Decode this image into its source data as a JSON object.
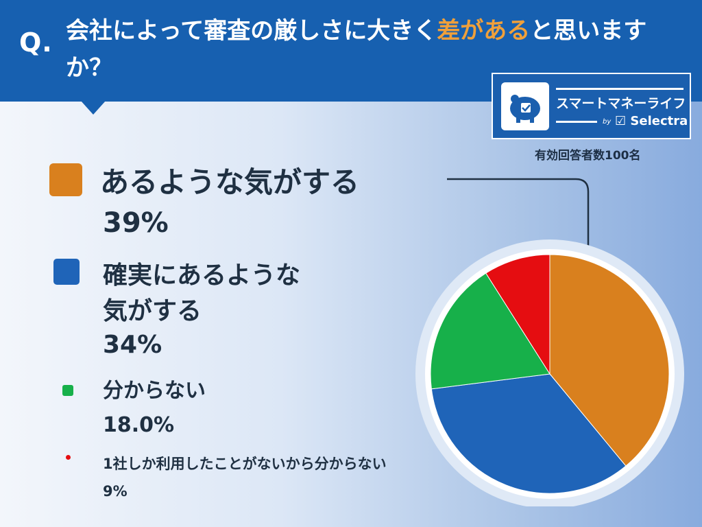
{
  "header": {
    "q_mark": "Q.",
    "question_part1": "会社によって審査の厳しさに大きく",
    "question_highlight": "差がある",
    "question_part2": "と思いますか？",
    "bg_color": "#1760b0",
    "highlight_color": "#f0a03a"
  },
  "logo": {
    "name": "スマートマネーライフ",
    "by": "by",
    "brand": "Selectra"
  },
  "respondents": "有効回答者数100名",
  "legend": [
    {
      "label": "あるような気がする",
      "label_line2": "",
      "value_text": "39%",
      "color": "#d9801e"
    },
    {
      "label": "確実にあるような",
      "label_line2": "気がする",
      "value_text": "34%",
      "color": "#1f64b8"
    },
    {
      "label": "分からない",
      "label_line2": "",
      "value_text": "18.0%",
      "color": "#17b04a"
    },
    {
      "label": "1社しか利用したことがないから分からない",
      "label_line2": "",
      "value_text": "9%",
      "color": "#e50d11"
    }
  ],
  "chart_data": {
    "type": "pie",
    "title": "",
    "categories": [
      "あるような気がする",
      "確実にあるような気がする",
      "分からない",
      "1社しか利用したことがないから分からない"
    ],
    "values": [
      39,
      34,
      18,
      9
    ],
    "colors": [
      "#d9801e",
      "#1f64b8",
      "#17b04a",
      "#e50d11"
    ],
    "start_angle": "12 o'clock, clockwise",
    "legend_position": "left"
  }
}
